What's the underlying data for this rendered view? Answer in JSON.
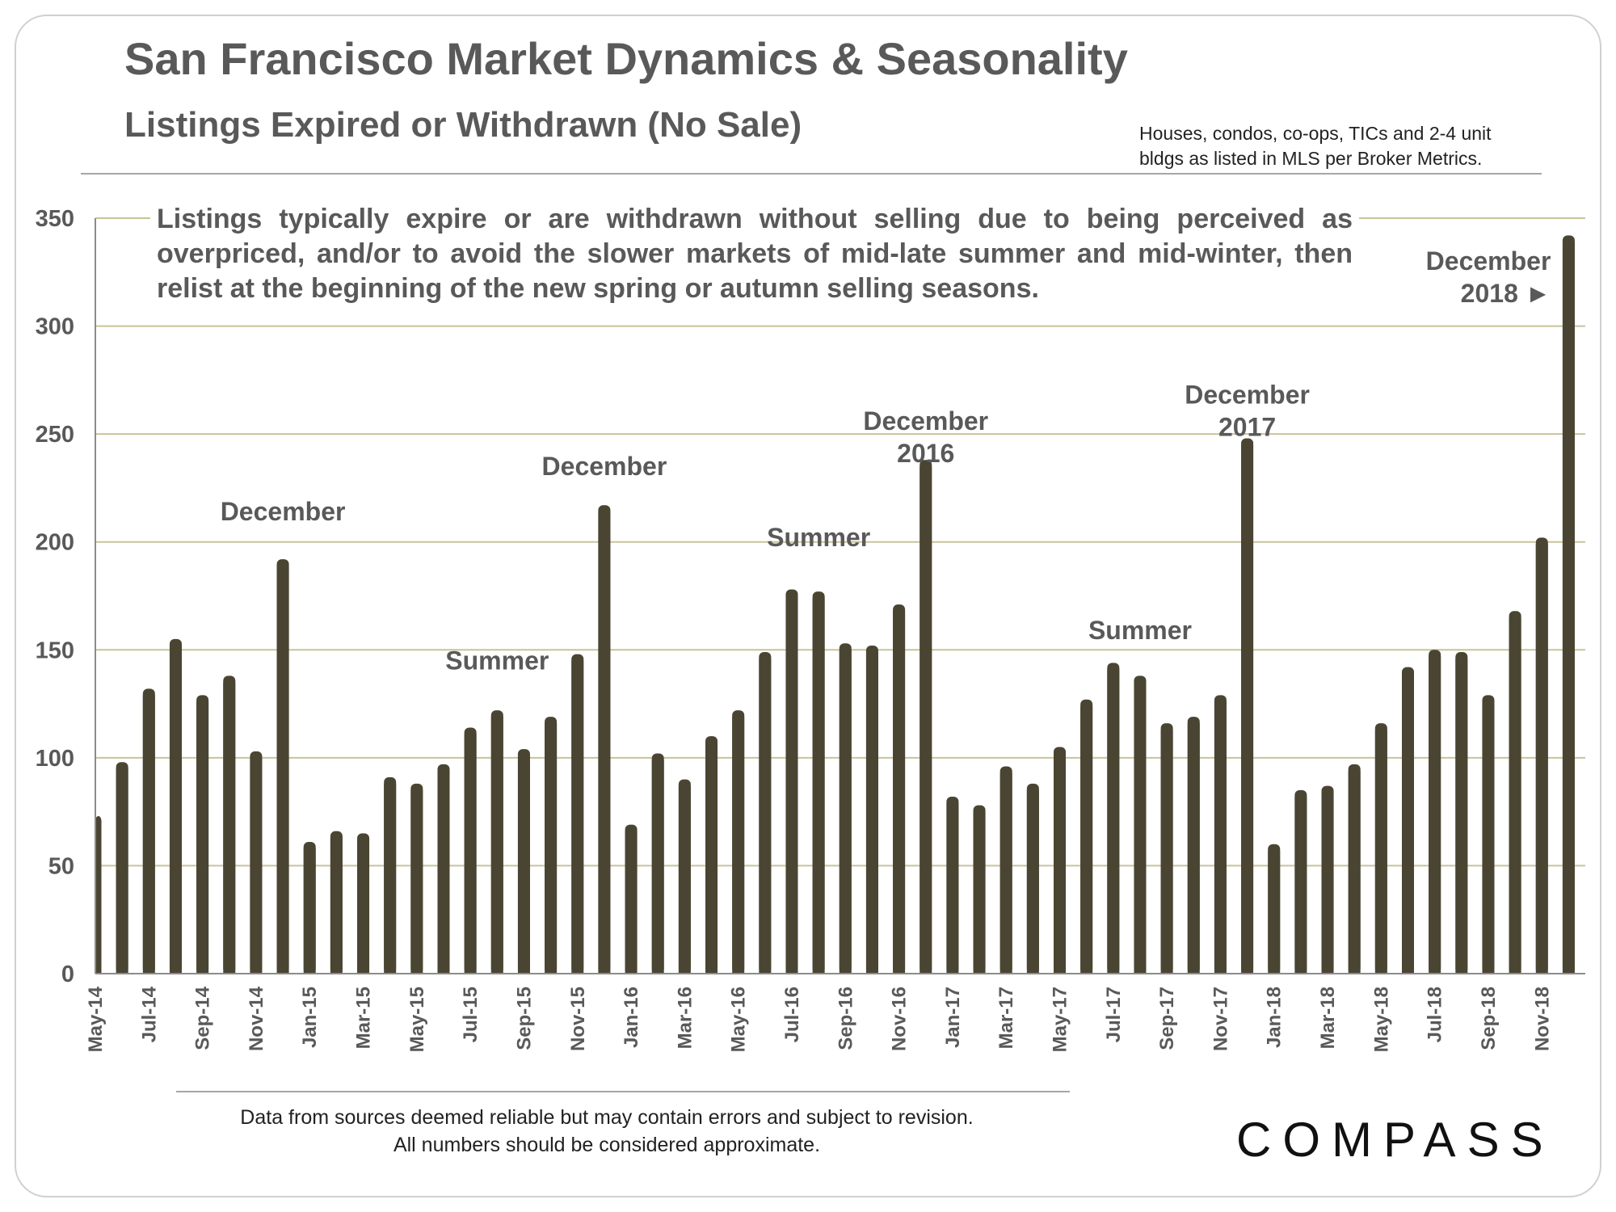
{
  "header": {
    "title": "San Francisco Market Dynamics & Seasonality",
    "subtitle": "Listings Expired or Withdrawn (No Sale)",
    "note_line1": "Houses, condos, co-ops, TICs and 2-4 unit",
    "note_line2": "bldgs as listed in MLS per Broker Metrics."
  },
  "callout": "Listings typically expire or are withdrawn without selling due to being perceived as overpriced, and/or to avoid the slower markets of mid-late summer and mid-winter, then relist at the beginning of the new spring or autumn selling seasons.",
  "footer": {
    "disclaimer_line1": "Data from sources deemed reliable but may contain errors and subject to revision.",
    "disclaimer_line2": "All numbers should be considered approximate.",
    "logo": "COMPASS"
  },
  "colors": {
    "bar": "#4a4532",
    "grid": "#c9c39a",
    "text": "#595959"
  },
  "chart_data": {
    "type": "bar",
    "title": "Listings Expired or Withdrawn (No Sale)",
    "xlabel": "",
    "ylabel": "",
    "ylim": [
      0,
      350
    ],
    "yticks": [
      0,
      50,
      100,
      150,
      200,
      250,
      300,
      350
    ],
    "grid": true,
    "categories": [
      "May-14",
      "Jun-14",
      "Jul-14",
      "Aug-14",
      "Sep-14",
      "Oct-14",
      "Nov-14",
      "Dec-14",
      "Jan-15",
      "Feb-15",
      "Mar-15",
      "Apr-15",
      "May-15",
      "Jun-15",
      "Jul-15",
      "Aug-15",
      "Sep-15",
      "Oct-15",
      "Nov-15",
      "Dec-15",
      "Jan-16",
      "Feb-16",
      "Mar-16",
      "Apr-16",
      "May-16",
      "Jun-16",
      "Jul-16",
      "Aug-16",
      "Sep-16",
      "Oct-16",
      "Nov-16",
      "Dec-16",
      "Jan-17",
      "Feb-17",
      "Mar-17",
      "Apr-17",
      "May-17",
      "Jun-17",
      "Jul-17",
      "Aug-17",
      "Sep-17",
      "Oct-17",
      "Nov-17",
      "Dec-17",
      "Jan-18",
      "Feb-18",
      "Mar-18",
      "Apr-18",
      "May-18",
      "Jun-18",
      "Jul-18",
      "Aug-18",
      "Sep-18",
      "Oct-18",
      "Nov-18",
      "Dec-18"
    ],
    "visible_xtick_labels": [
      "May-14",
      "Jul-14",
      "Sep-14",
      "Nov-14",
      "Jan-15",
      "Mar-15",
      "May-15",
      "Jul-15",
      "Sep-15",
      "Nov-15",
      "Jan-16",
      "Mar-16",
      "May-16",
      "Jul-16",
      "Sep-16",
      "Nov-16",
      "Jan-17",
      "Mar-17",
      "May-17",
      "Jul-17",
      "Sep-17",
      "Nov-17",
      "Jan-18",
      "Mar-18",
      "May-18",
      "Jul-18",
      "Sep-18",
      "Nov-18"
    ],
    "values": [
      73,
      98,
      132,
      155,
      129,
      138,
      103,
      192,
      61,
      66,
      65,
      91,
      88,
      97,
      114,
      122,
      104,
      119,
      148,
      217,
      69,
      102,
      90,
      110,
      122,
      149,
      178,
      177,
      153,
      152,
      171,
      238,
      82,
      78,
      96,
      88,
      105,
      127,
      144,
      138,
      116,
      119,
      129,
      248,
      60,
      85,
      87,
      97,
      116,
      142,
      150,
      149,
      129,
      168,
      202,
      342
    ],
    "annotations": [
      {
        "lines": [
          "December"
        ],
        "category": "Dec-14",
        "y": 210
      },
      {
        "lines": [
          "Summer"
        ],
        "category": "Aug-15",
        "y": 141
      },
      {
        "lines": [
          "December"
        ],
        "category": "Dec-15",
        "y": 231
      },
      {
        "lines": [
          "Summer"
        ],
        "category": "Aug-16",
        "y": 198
      },
      {
        "lines": [
          "December",
          "2016"
        ],
        "category": "Dec-16",
        "y": 252
      },
      {
        "lines": [
          "Summer"
        ],
        "category": "Aug-17",
        "y": 155
      },
      {
        "lines": [
          "December",
          "2017"
        ],
        "category": "Dec-17",
        "y": 264
      },
      {
        "lines": [
          "December",
          "2018 ►"
        ],
        "category": "Dec-18",
        "y": 326,
        "align": "end"
      }
    ]
  }
}
